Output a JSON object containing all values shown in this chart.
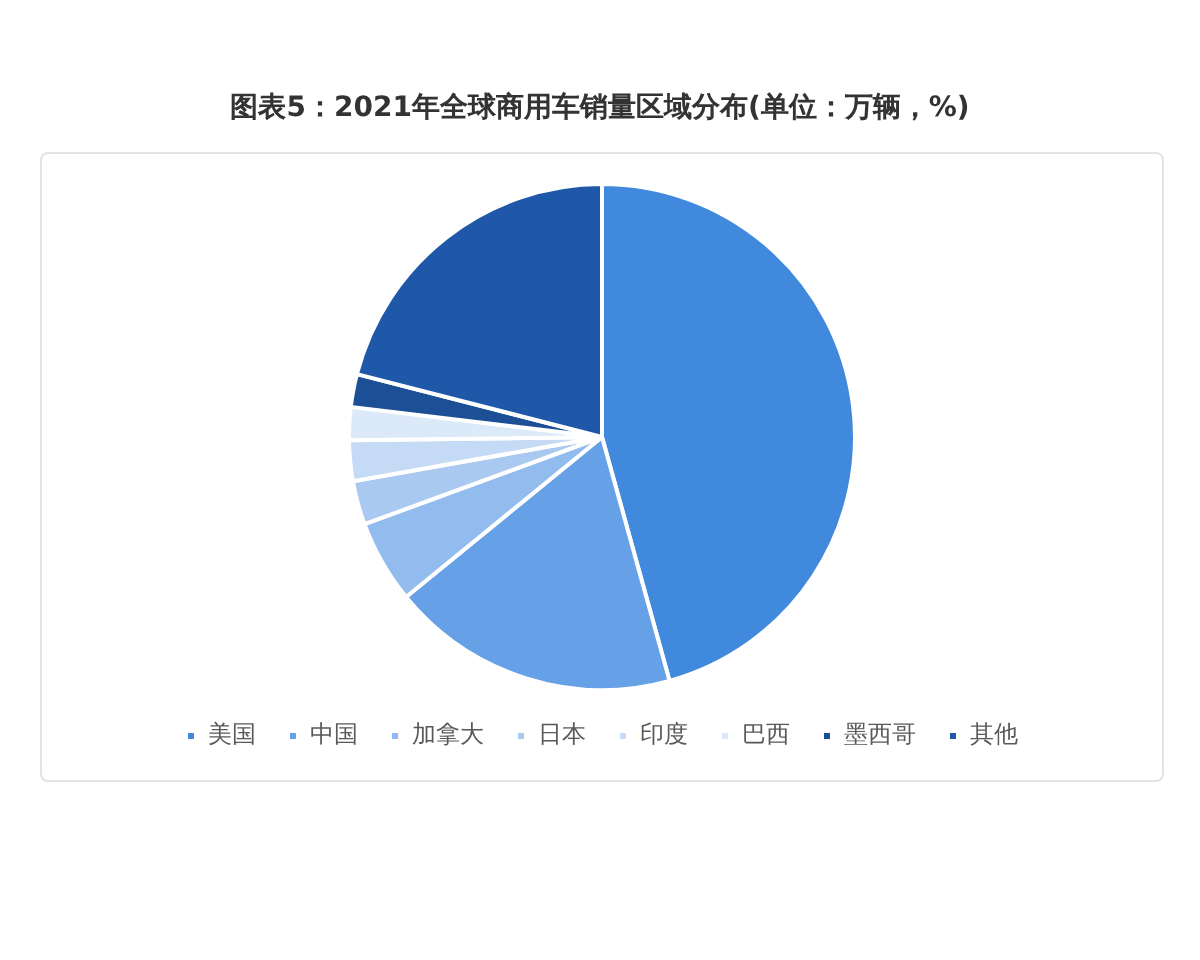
{
  "chart_data": {
    "type": "pie",
    "title": "图表5：2021年全球商用车销量区域分布(单位：万辆，%)",
    "categories": [
      "美国",
      "中国",
      "加拿大",
      "日本",
      "印度",
      "巴西",
      "墨西哥",
      "其他"
    ],
    "values": [
      45.7,
      18.4,
      5.3,
      2.8,
      2.6,
      2.1,
      2.1,
      21.0
    ],
    "colors": [
      "#4089dd",
      "#66a0e6",
      "#92bbee",
      "#aac9f1",
      "#c5dbf5",
      "#dce9f9",
      "#1d4f96",
      "#1f58a8"
    ],
    "legend": "bottom"
  }
}
